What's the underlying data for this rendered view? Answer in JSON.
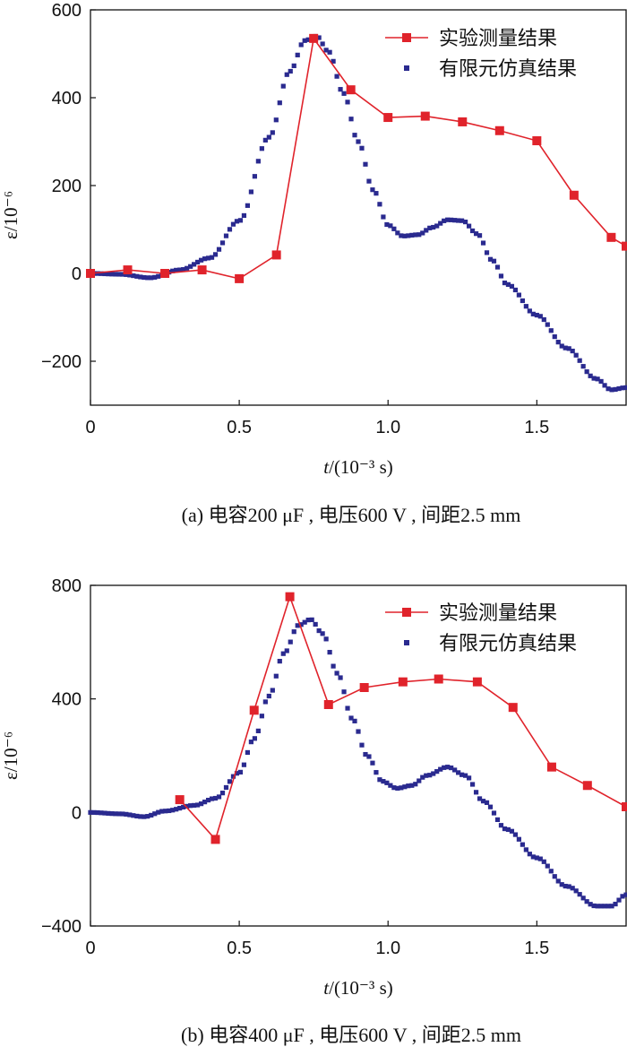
{
  "chart_data": [
    {
      "type": "line",
      "caption": "(a) 电容200 μF , 电压600 V , 间距2.5 mm",
      "xlabel_var": "t",
      "xlabel_unit": "/(10⁻³ s)",
      "ylabel": "ε/10⁻⁶",
      "xlim": [
        0,
        1.8
      ],
      "ylim": [
        -300,
        600
      ],
      "xticks": [
        0,
        0.5,
        1.0,
        1.5
      ],
      "xtick_labels": [
        "0",
        "0.5",
        "1.0",
        "1.5"
      ],
      "yticks": [
        -200,
        0,
        200,
        400,
        600
      ],
      "ytick_labels": [
        "−200",
        "0",
        "200",
        "400",
        "600"
      ],
      "legend_position": "top-right",
      "series": [
        {
          "name": "实验测量结果",
          "style": "line-square",
          "color": "#e0232b",
          "x": [
            0,
            0.125,
            0.25,
            0.375,
            0.5,
            0.625,
            0.75,
            0.875,
            1.0,
            1.125,
            1.25,
            1.375,
            1.5,
            1.625,
            1.75,
            1.8
          ],
          "y": [
            0,
            8,
            0,
            8,
            -12,
            42,
            535,
            418,
            355,
            358,
            345,
            325,
            302,
            178,
            82,
            62
          ]
        },
        {
          "name": "有限元仿真结果",
          "style": "dots",
          "color": "#2a2a8f",
          "keyframes": {
            "x": [
              0,
              0.1,
              0.2,
              0.3,
              0.4,
              0.5,
              0.6,
              0.67,
              0.72,
              0.76,
              0.8,
              0.85,
              0.9,
              0.95,
              1.0,
              1.05,
              1.1,
              1.15,
              1.2,
              1.25,
              1.3,
              1.35,
              1.4,
              1.5,
              1.6,
              1.7,
              1.75,
              1.8
            ],
            "y": [
              0,
              -2,
              -10,
              8,
              35,
              120,
              310,
              460,
              530,
              540,
              505,
              410,
              300,
              190,
              110,
              85,
              88,
              105,
              122,
              120,
              90,
              30,
              -25,
              -95,
              -170,
              -240,
              -265,
              -260
            ]
          }
        }
      ]
    },
    {
      "type": "line",
      "caption": "(b) 电容400 μF , 电压600 V , 间距2.5 mm",
      "xlabel_var": "t",
      "xlabel_unit": "/(10⁻³ s)",
      "ylabel": "ε/10⁻⁶",
      "xlim": [
        0,
        1.8
      ],
      "ylim": [
        -400,
        800
      ],
      "xticks": [
        0,
        0.5,
        1.0,
        1.5
      ],
      "xtick_labels": [
        "0",
        "0.5",
        "1.0",
        "1.5"
      ],
      "yticks": [
        -400,
        0,
        400,
        800
      ],
      "ytick_labels": [
        "−400",
        "0",
        "400",
        "800"
      ],
      "legend_position": "top-right",
      "series": [
        {
          "name": "实验测量结果",
          "style": "line-square",
          "color": "#e0232b",
          "x": [
            0.3,
            0.42,
            0.55,
            0.67,
            0.8,
            0.92,
            1.05,
            1.17,
            1.3,
            1.42,
            1.55,
            1.67,
            1.8
          ],
          "y": [
            45,
            -95,
            360,
            760,
            380,
            440,
            460,
            470,
            460,
            370,
            160,
            95,
            20
          ]
        },
        {
          "name": "有限元仿真结果",
          "style": "dots",
          "color": "#2a2a8f",
          "keyframes": {
            "x": [
              0,
              0.1,
              0.18,
              0.25,
              0.35,
              0.42,
              0.5,
              0.55,
              0.6,
              0.65,
              0.7,
              0.74,
              0.78,
              0.83,
              0.88,
              0.93,
              0.98,
              1.03,
              1.08,
              1.13,
              1.2,
              1.26,
              1.32,
              1.4,
              1.5,
              1.6,
              1.7,
              1.75,
              1.8
            ],
            "y": [
              0,
              -5,
              -15,
              5,
              25,
              50,
              140,
              260,
              410,
              560,
              660,
              680,
              630,
              490,
              330,
              200,
              110,
              85,
              95,
              130,
              160,
              130,
              40,
              -60,
              -160,
              -260,
              -330,
              -330,
              -290
            ]
          }
        }
      ]
    }
  ]
}
